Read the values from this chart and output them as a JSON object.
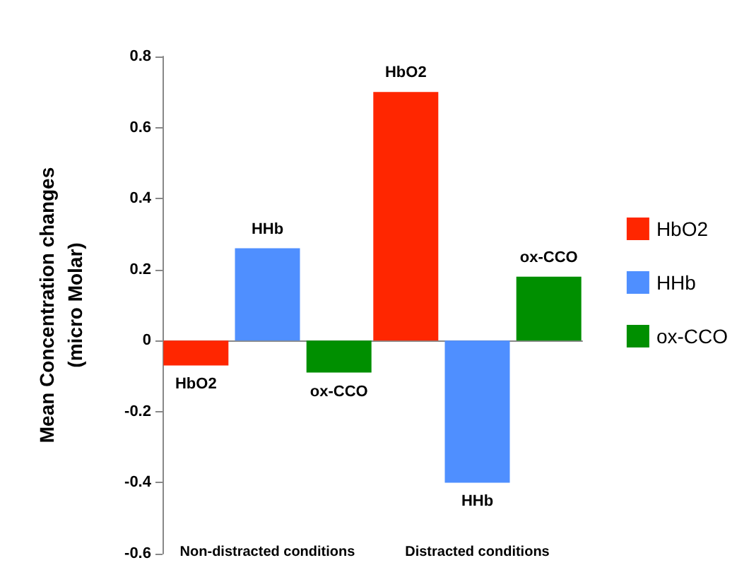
{
  "chart_data": {
    "type": "bar",
    "ylabel": "Mean Concentration changes\n(micro Molar)",
    "categories": [
      "Non-distracted conditions",
      "Distracted conditions"
    ],
    "series": [
      {
        "name": "HbO2",
        "color": "#ff2600",
        "values": [
          -0.07,
          0.7
        ]
      },
      {
        "name": "HHb",
        "color": "#4f8fff",
        "values": [
          0.26,
          -0.4
        ]
      },
      {
        "name": "ox-CCO",
        "color": "#008f00",
        "values": [
          -0.09,
          0.18
        ]
      }
    ],
    "annotations": [
      "HbO2",
      "HHb",
      "ox-CCO",
      "HbO2",
      "HHb",
      "ox-CCO"
    ],
    "ylim": [
      -0.6,
      0.8
    ],
    "yticks": [
      -0.6,
      -0.4,
      -0.2,
      0,
      0.2,
      0.4,
      0.6,
      0.8
    ],
    "legend": "right"
  }
}
